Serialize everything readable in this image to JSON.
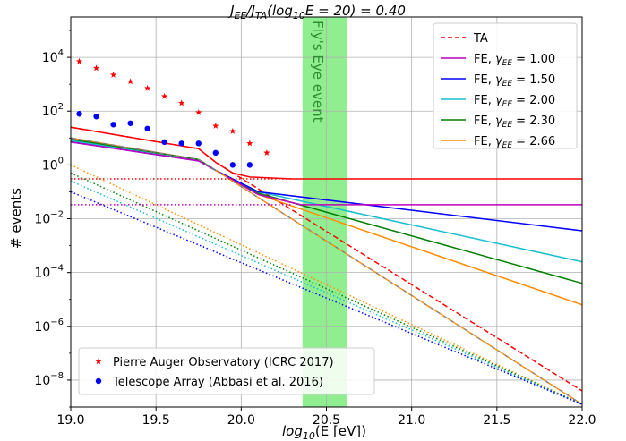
{
  "chart_data": {
    "type": "line",
    "title": "J_EE/J_TA(log10 E = 20) = 0.40",
    "title_parts": {
      "j1": "J",
      "sub1": "EE",
      "slash": "/",
      "j2": "J",
      "sub2": "TA",
      "open": "(",
      "log": "log",
      "logsub": "10",
      "rest": "E = 20) = 0.40"
    },
    "xlabel": "log10(E [eV])",
    "xlabel_parts": {
      "log": "log",
      "sub": "10",
      "rest": "(E [eV])"
    },
    "ylabel": "# events",
    "xlim": [
      19.0,
      22.0
    ],
    "ylim_log10": [
      -9,
      5.5
    ],
    "y_scale": "log",
    "grid": true,
    "x_ticks": [
      "19.0",
      "19.5",
      "20.0",
      "20.5",
      "21.0",
      "21.5",
      "22.0"
    ],
    "y_ticks": [
      {
        "base": "10",
        "exp": "4",
        "log": 4
      },
      {
        "base": "10",
        "exp": "2",
        "log": 2
      },
      {
        "base": "10",
        "exp": "0",
        "log": 0
      },
      {
        "base": "10",
        "exp": "−2",
        "log": -2
      },
      {
        "base": "10",
        "exp": "−4",
        "log": -4
      },
      {
        "base": "10",
        "exp": "−6",
        "log": -6
      },
      {
        "base": "10",
        "exp": "−8",
        "log": -8
      }
    ],
    "band": {
      "x_range": [
        20.36,
        20.62
      ],
      "color": "#90ee90",
      "label": "Fly's Eye event",
      "label_color": "#2e8b2e"
    },
    "legend_top": {
      "placement": "top-right",
      "entries": [
        {
          "label": "TA",
          "sym": "",
          "sub": "",
          "val": "",
          "color": "#ff0000",
          "dash": true
        },
        {
          "label": "FE, ",
          "sym": "γ",
          "sub": "EE",
          "val": " = 1.00",
          "color": "#bf00bf",
          "dash": false
        },
        {
          "label": "FE, ",
          "sym": "γ",
          "sub": "EE",
          "val": " = 1.50",
          "color": "#0000ff",
          "dash": false
        },
        {
          "label": "FE, ",
          "sym": "γ",
          "sub": "EE",
          "val": " = 2.00",
          "color": "#17becf",
          "dash": false
        },
        {
          "label": "FE, ",
          "sym": "γ",
          "sub": "EE",
          "val": " = 2.30",
          "color": "#008000",
          "dash": false
        },
        {
          "label": "FE, ",
          "sym": "γ",
          "sub": "EE",
          "val": " = 2.66",
          "color": "#ff8c00",
          "dash": false
        }
      ]
    },
    "legend_bottom": {
      "placement": "bottom-left",
      "entries": [
        {
          "label": "Pierre Auger Observatory (ICRC 2017)",
          "marker": "star",
          "color": "#ff0000"
        },
        {
          "label": "Telescope Array (Abbasi et al. 2016)",
          "marker": "circle",
          "color": "#0000ff"
        }
      ]
    },
    "scatter_series": [
      {
        "name": "Pierre Auger Observatory (ICRC 2017)",
        "marker": "star",
        "color": "#ff0000",
        "points": [
          [
            19.05,
            3.85
          ],
          [
            19.15,
            3.6
          ],
          [
            19.25,
            3.35
          ],
          [
            19.35,
            3.1
          ],
          [
            19.45,
            2.85
          ],
          [
            19.55,
            2.55
          ],
          [
            19.65,
            2.3
          ],
          [
            19.75,
            1.95
          ],
          [
            19.85,
            1.45
          ],
          [
            19.95,
            1.25
          ],
          [
            20.05,
            0.8
          ],
          [
            20.15,
            0.45
          ]
        ]
      },
      {
        "name": "Telescope Array (Abbasi et al. 2016)",
        "marker": "circle",
        "color": "#0000ff",
        "points": [
          [
            19.05,
            1.9
          ],
          [
            19.15,
            1.8
          ],
          [
            19.25,
            1.5
          ],
          [
            19.35,
            1.55
          ],
          [
            19.45,
            1.35
          ],
          [
            19.55,
            0.85
          ],
          [
            19.65,
            0.8
          ],
          [
            19.75,
            0.8
          ],
          [
            19.85,
            0.45
          ],
          [
            19.95,
            0.0
          ],
          [
            20.05,
            0.0
          ]
        ]
      }
    ],
    "line_series": [
      {
        "color": "#ff0000",
        "style": "solid",
        "width": 1.5,
        "points": [
          [
            19.0,
            1.4
          ],
          [
            19.75,
            0.6
          ],
          [
            19.85,
            0.1
          ],
          [
            19.95,
            -0.3
          ],
          [
            20.05,
            -0.45
          ],
          [
            20.3,
            -0.52
          ],
          [
            22.0,
            -0.52
          ]
        ]
      },
      {
        "color": "#ff0000",
        "style": "dashed",
        "width": 1.5,
        "points": [
          [
            19.0,
            1.4
          ],
          [
            19.75,
            0.6
          ],
          [
            19.85,
            0.1
          ],
          [
            22.0,
            -8.4
          ]
        ]
      },
      {
        "color": "#ff8c00",
        "style": "solid",
        "width": 1.5,
        "points": [
          [
            19.0,
            1.0
          ],
          [
            19.75,
            0.2
          ],
          [
            19.85,
            -0.2
          ],
          [
            20.1,
            -1.1
          ],
          [
            22.0,
            -5.2
          ]
        ]
      },
      {
        "color": "#008000",
        "style": "solid",
        "width": 1.5,
        "points": [
          [
            19.0,
            0.95
          ],
          [
            19.75,
            0.2
          ],
          [
            19.85,
            -0.2
          ],
          [
            20.1,
            -1.05
          ],
          [
            22.0,
            -4.4
          ]
        ]
      },
      {
        "color": "#17becf",
        "style": "solid",
        "width": 1.5,
        "points": [
          [
            19.0,
            0.9
          ],
          [
            19.75,
            0.15
          ],
          [
            19.85,
            -0.2
          ],
          [
            20.1,
            -1.0
          ],
          [
            22.0,
            -3.6
          ]
        ]
      },
      {
        "color": "#0000ff",
        "style": "solid",
        "width": 1.5,
        "points": [
          [
            19.0,
            0.85
          ],
          [
            19.75,
            0.15
          ],
          [
            19.85,
            -0.2
          ],
          [
            20.1,
            -1.0
          ],
          [
            22.0,
            -2.45
          ]
        ]
      },
      {
        "color": "#bf00bf",
        "style": "solid",
        "width": 1.5,
        "points": [
          [
            19.0,
            0.85
          ],
          [
            19.75,
            0.15
          ],
          [
            19.85,
            -0.2
          ],
          [
            20.1,
            -1.1
          ],
          [
            20.35,
            -1.48
          ],
          [
            22.0,
            -1.48
          ]
        ]
      },
      {
        "color": "#808080",
        "style": "dashed",
        "width": 1.5,
        "points": [
          [
            19.0,
            1.0
          ],
          [
            19.75,
            0.2
          ],
          [
            19.85,
            -0.2
          ],
          [
            22.0,
            -8.9
          ]
        ]
      },
      {
        "color": "#ff8c00",
        "style": "dashed",
        "width": 1.3,
        "points": [
          [
            19.85,
            -0.2
          ],
          [
            22.0,
            -8.9
          ]
        ]
      },
      {
        "color": "#ff8c00",
        "style": "dotted",
        "width": 1.5,
        "points": [
          [
            19.0,
            0.0
          ],
          [
            22.0,
            -8.9
          ]
        ]
      },
      {
        "color": "#008000",
        "style": "dotted",
        "width": 1.5,
        "points": [
          [
            19.0,
            -0.3
          ],
          [
            22.0,
            -8.9
          ]
        ]
      },
      {
        "color": "#17becf",
        "style": "dotted",
        "width": 1.5,
        "points": [
          [
            19.0,
            -0.6
          ],
          [
            22.0,
            -8.9
          ]
        ]
      },
      {
        "color": "#0000ff",
        "style": "dotted",
        "width": 1.5,
        "points": [
          [
            19.0,
            -1.0
          ],
          [
            22.0,
            -8.9
          ]
        ]
      },
      {
        "color": "#bf00bf",
        "style": "dotted",
        "width": 1.5,
        "points": [
          [
            19.0,
            -1.48
          ],
          [
            20.3,
            -1.48
          ]
        ]
      },
      {
        "color": "#ff0000",
        "style": "dotted",
        "width": 1.5,
        "points": [
          [
            19.0,
            -0.52
          ],
          [
            20.3,
            -0.52
          ]
        ]
      }
    ]
  }
}
